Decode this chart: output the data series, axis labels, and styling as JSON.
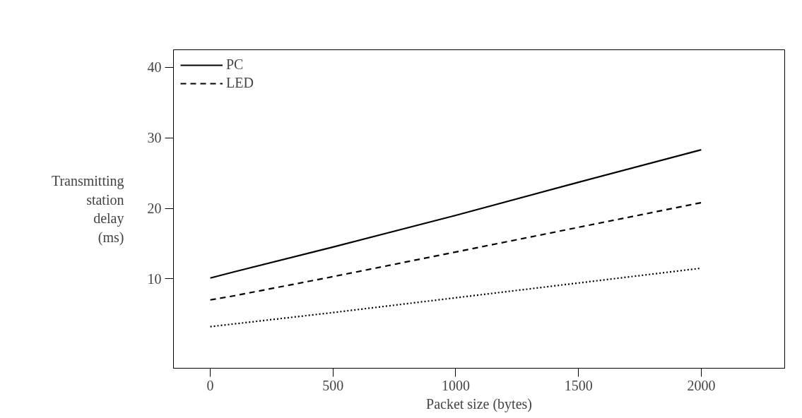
{
  "chart_data": {
    "type": "line",
    "xlabel": "Packet size (bytes)",
    "ylabel": "Transmitting\nstation\ndelay\n(ms)",
    "x": [
      0,
      100,
      500,
      1000,
      1500,
      2000
    ],
    "series": [
      {
        "name": "PC",
        "color": "#000000",
        "line_style": "solid",
        "values": [
          10.1,
          11,
          14.5,
          19,
          23.7,
          28.3
        ]
      },
      {
        "name": "LED",
        "color": "#000000",
        "line_style": "dashed",
        "values": [
          7,
          7.6,
          10.3,
          13.8,
          17.3,
          20.8
        ]
      },
      {
        "color": "#000000",
        "line_style": "dotted",
        "values": [
          3.2,
          3.6,
          5.2,
          7.3,
          9.4,
          11.5
        ]
      }
    ],
    "xlim": [
      -150,
      2340
    ],
    "ylim": [
      -2.7,
      42.5
    ],
    "xticks": [
      0,
      500,
      1000,
      1500,
      2000
    ],
    "yticks": [
      10,
      20,
      30,
      40
    ],
    "grid": false,
    "legend": "top left",
    "marker": "none"
  }
}
